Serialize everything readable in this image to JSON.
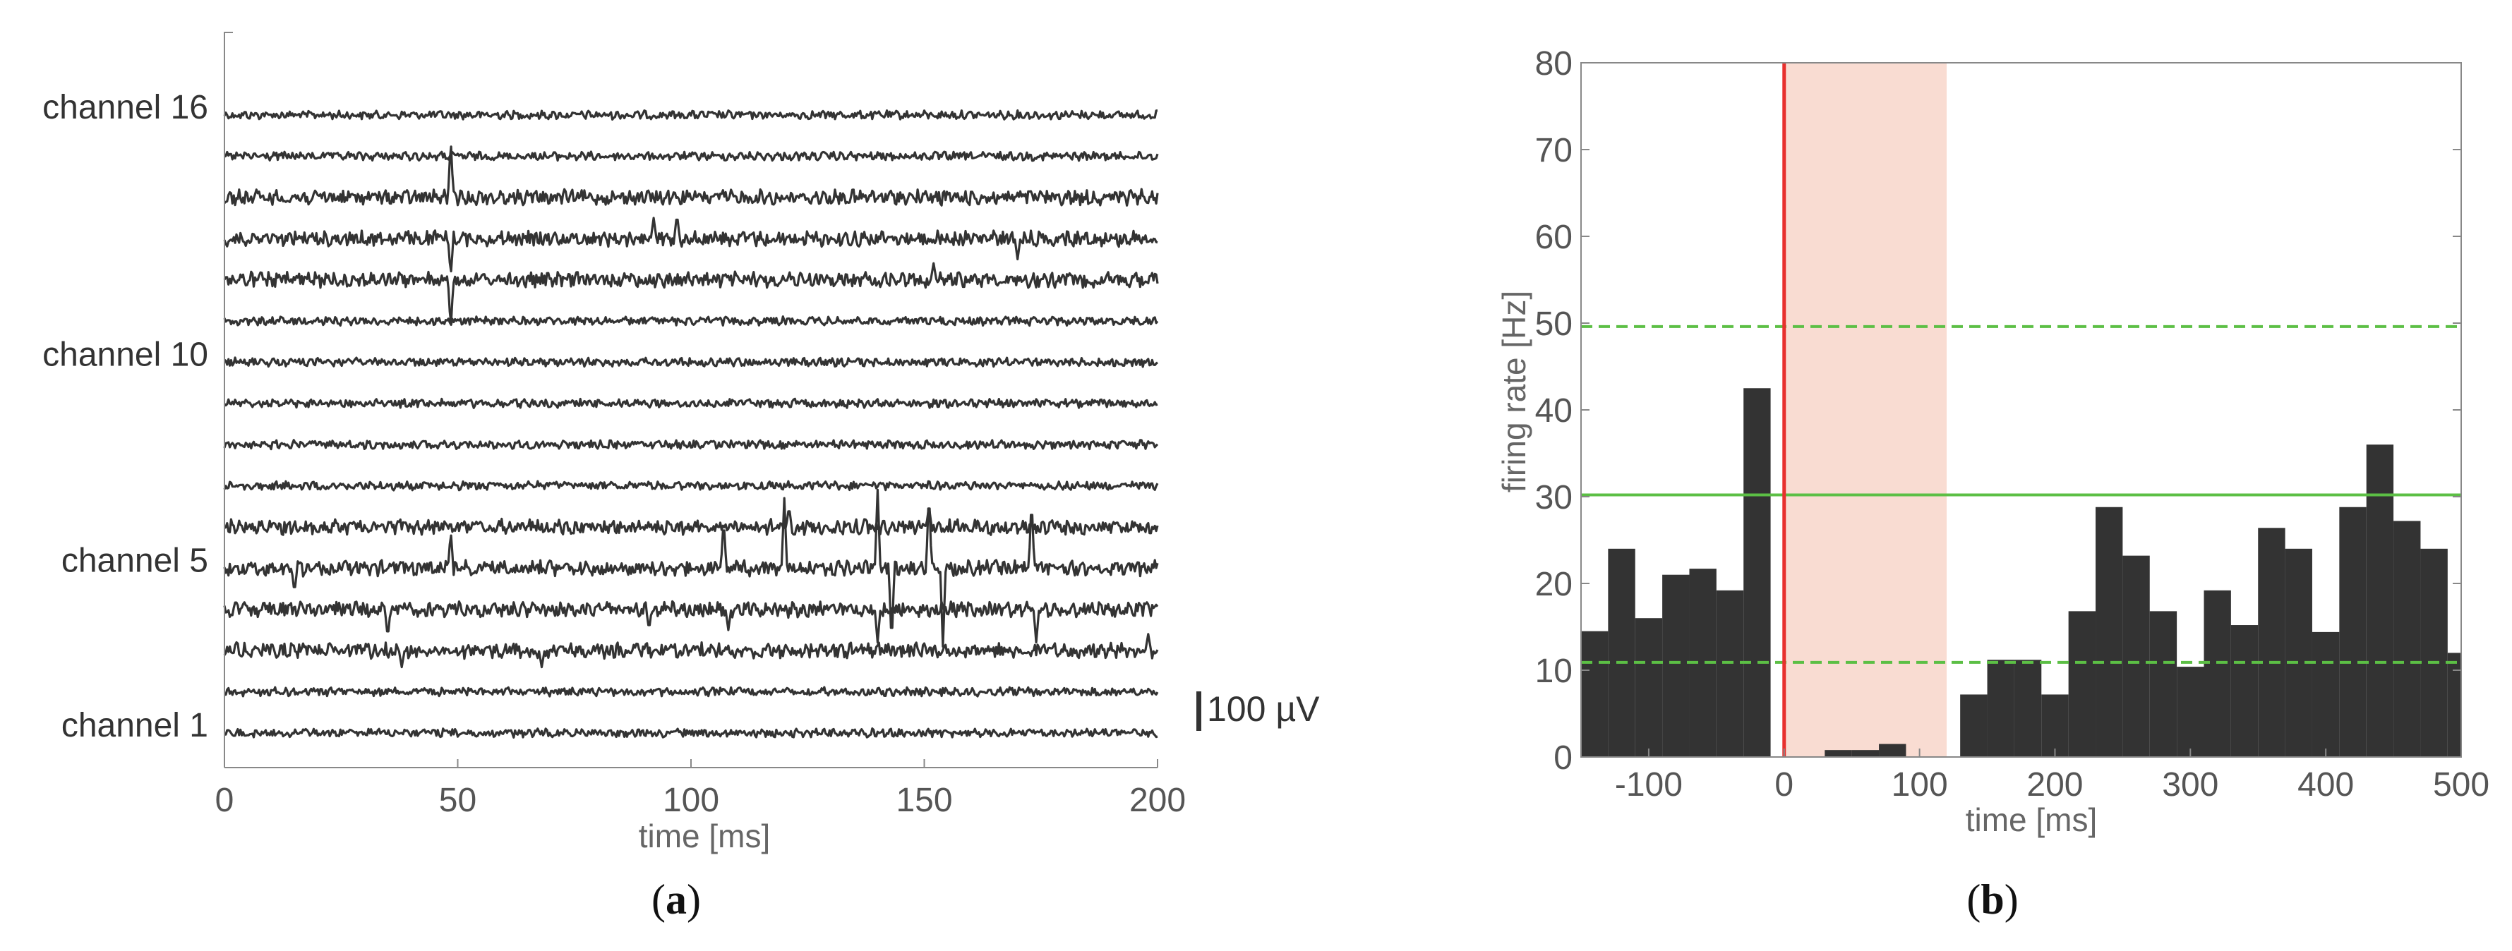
{
  "chart_data": [
    {
      "panel": "(a)",
      "panel_letter": "a",
      "type": "line",
      "title": "",
      "xlabel": "time [ms]",
      "ylabel": "",
      "xlim": [
        0,
        200
      ],
      "xticks": [
        0,
        50,
        100,
        150,
        200
      ],
      "xtick_labels": [
        "0",
        "50",
        "100",
        "150",
        "200"
      ],
      "channel_count": 16,
      "channel_labels": [
        {
          "channel": 16,
          "label": "channel 16"
        },
        {
          "channel": 10,
          "label": "channel 10"
        },
        {
          "channel": 5,
          "label": "channel 5"
        },
        {
          "channel": 1,
          "label": "channel 1"
        }
      ],
      "scale_bar": {
        "label": "100 µV",
        "value_uV": 100
      },
      "trace_color": "#333333",
      "spikes": [
        {
          "channel": 14,
          "time": 48.5,
          "amp": 1.4
        },
        {
          "channel": 13,
          "time": 48.5,
          "amp": -0.9
        },
        {
          "channel": 12,
          "time": 48.5,
          "amp": -1.2
        },
        {
          "channel": 13,
          "time": 92,
          "amp": 0.5
        },
        {
          "channel": 13,
          "time": 97,
          "amp": 0.6
        },
        {
          "channel": 13,
          "time": 170,
          "amp": -0.5
        },
        {
          "channel": 12,
          "time": 152,
          "amp": 0.4
        },
        {
          "channel": 5,
          "time": 48.5,
          "amp": 0.9
        },
        {
          "channel": 5,
          "time": 15,
          "amp": -0.6
        },
        {
          "channel": 5,
          "time": 107,
          "amp": 1.2
        },
        {
          "channel": 5,
          "time": 120,
          "amp": 1.7
        },
        {
          "channel": 5,
          "time": 140,
          "amp": 1.9
        },
        {
          "channel": 5,
          "time": 143,
          "amp": -1.9
        },
        {
          "channel": 5,
          "time": 151,
          "amp": 1.9
        },
        {
          "channel": 5,
          "time": 154,
          "amp": -1.9
        },
        {
          "channel": 5,
          "time": 173,
          "amp": 1.7
        },
        {
          "channel": 4,
          "time": 35,
          "amp": -0.7
        },
        {
          "channel": 4,
          "time": 91,
          "amp": -0.5
        },
        {
          "channel": 4,
          "time": 108,
          "amp": -0.5
        },
        {
          "channel": 4,
          "time": 140,
          "amp": -0.8
        },
        {
          "channel": 4,
          "time": 174,
          "amp": -0.8
        },
        {
          "channel": 3,
          "time": 38,
          "amp": -0.4
        },
        {
          "channel": 3,
          "time": 68,
          "amp": -0.4
        },
        {
          "channel": 3,
          "time": 198,
          "amp": 0.4
        },
        {
          "channel": 6,
          "time": 121,
          "amp": 0.5
        },
        {
          "channel": 6,
          "time": 151,
          "amp": 0.5
        }
      ]
    },
    {
      "panel": "(b)",
      "panel_letter": "b",
      "type": "bar",
      "title": "",
      "xlabel": "time [ms]",
      "ylabel": "firing rate [Hz]",
      "xlim": [
        -150,
        500
      ],
      "ylim": [
        0,
        80
      ],
      "xticks": [
        -100,
        0,
        100,
        200,
        300,
        400,
        500
      ],
      "xtick_labels": [
        "-100",
        "0",
        "100",
        "200",
        "300",
        "400",
        "500"
      ],
      "yticks": [
        0,
        10,
        20,
        30,
        40,
        50,
        60,
        70,
        80
      ],
      "ytick_labels": [
        "0",
        "10",
        "20",
        "30",
        "40",
        "50",
        "60",
        "70",
        "80"
      ],
      "bin_width": 20,
      "bins": [
        {
          "start": -150,
          "value": 14.5
        },
        {
          "start": -130,
          "value": 24
        },
        {
          "start": -110,
          "value": 16
        },
        {
          "start": -90,
          "value": 21
        },
        {
          "start": -70,
          "value": 21.7
        },
        {
          "start": -50,
          "value": 19.2
        },
        {
          "start": -30,
          "value": 42.5
        },
        {
          "start": -10,
          "value": 0
        },
        {
          "start": 10,
          "value": 0
        },
        {
          "start": 30,
          "value": 0.8
        },
        {
          "start": 50,
          "value": 0.8
        },
        {
          "start": 70,
          "value": 1.5
        },
        {
          "start": 90,
          "value": 0
        },
        {
          "start": 110,
          "value": 0
        },
        {
          "start": 130,
          "value": 7.2
        },
        {
          "start": 150,
          "value": 11.2
        },
        {
          "start": 170,
          "value": 11.2
        },
        {
          "start": 190,
          "value": 7.2
        },
        {
          "start": 210,
          "value": 16.8
        },
        {
          "start": 230,
          "value": 28.8
        },
        {
          "start": 250,
          "value": 23.2
        },
        {
          "start": 270,
          "value": 16.8
        },
        {
          "start": 290,
          "value": 10.4
        },
        {
          "start": 310,
          "value": 19.2
        },
        {
          "start": 330,
          "value": 15.2
        },
        {
          "start": 350,
          "value": 26.4
        },
        {
          "start": 370,
          "value": 24
        },
        {
          "start": 390,
          "value": 14.4
        },
        {
          "start": 410,
          "value": 28.8
        },
        {
          "start": 430,
          "value": 36
        },
        {
          "start": 450,
          "value": 27.2
        },
        {
          "start": 470,
          "value": 24
        },
        {
          "start": 490,
          "value": 12
        }
      ],
      "bar_color": "#333333",
      "stimulus_line": {
        "x": 0,
        "color": "#e8302e"
      },
      "shaded_region": {
        "x_range": [
          0,
          120
        ],
        "color": "#f9dcd2"
      },
      "mean_line": {
        "y": 30.2,
        "color": "#5cbf45",
        "style": "solid"
      },
      "upper_threshold": {
        "y": 49.6,
        "color": "#5cbf45",
        "style": "dashed"
      },
      "lower_threshold": {
        "y": 10.9,
        "color": "#5cbf45",
        "style": "dashed"
      }
    }
  ]
}
